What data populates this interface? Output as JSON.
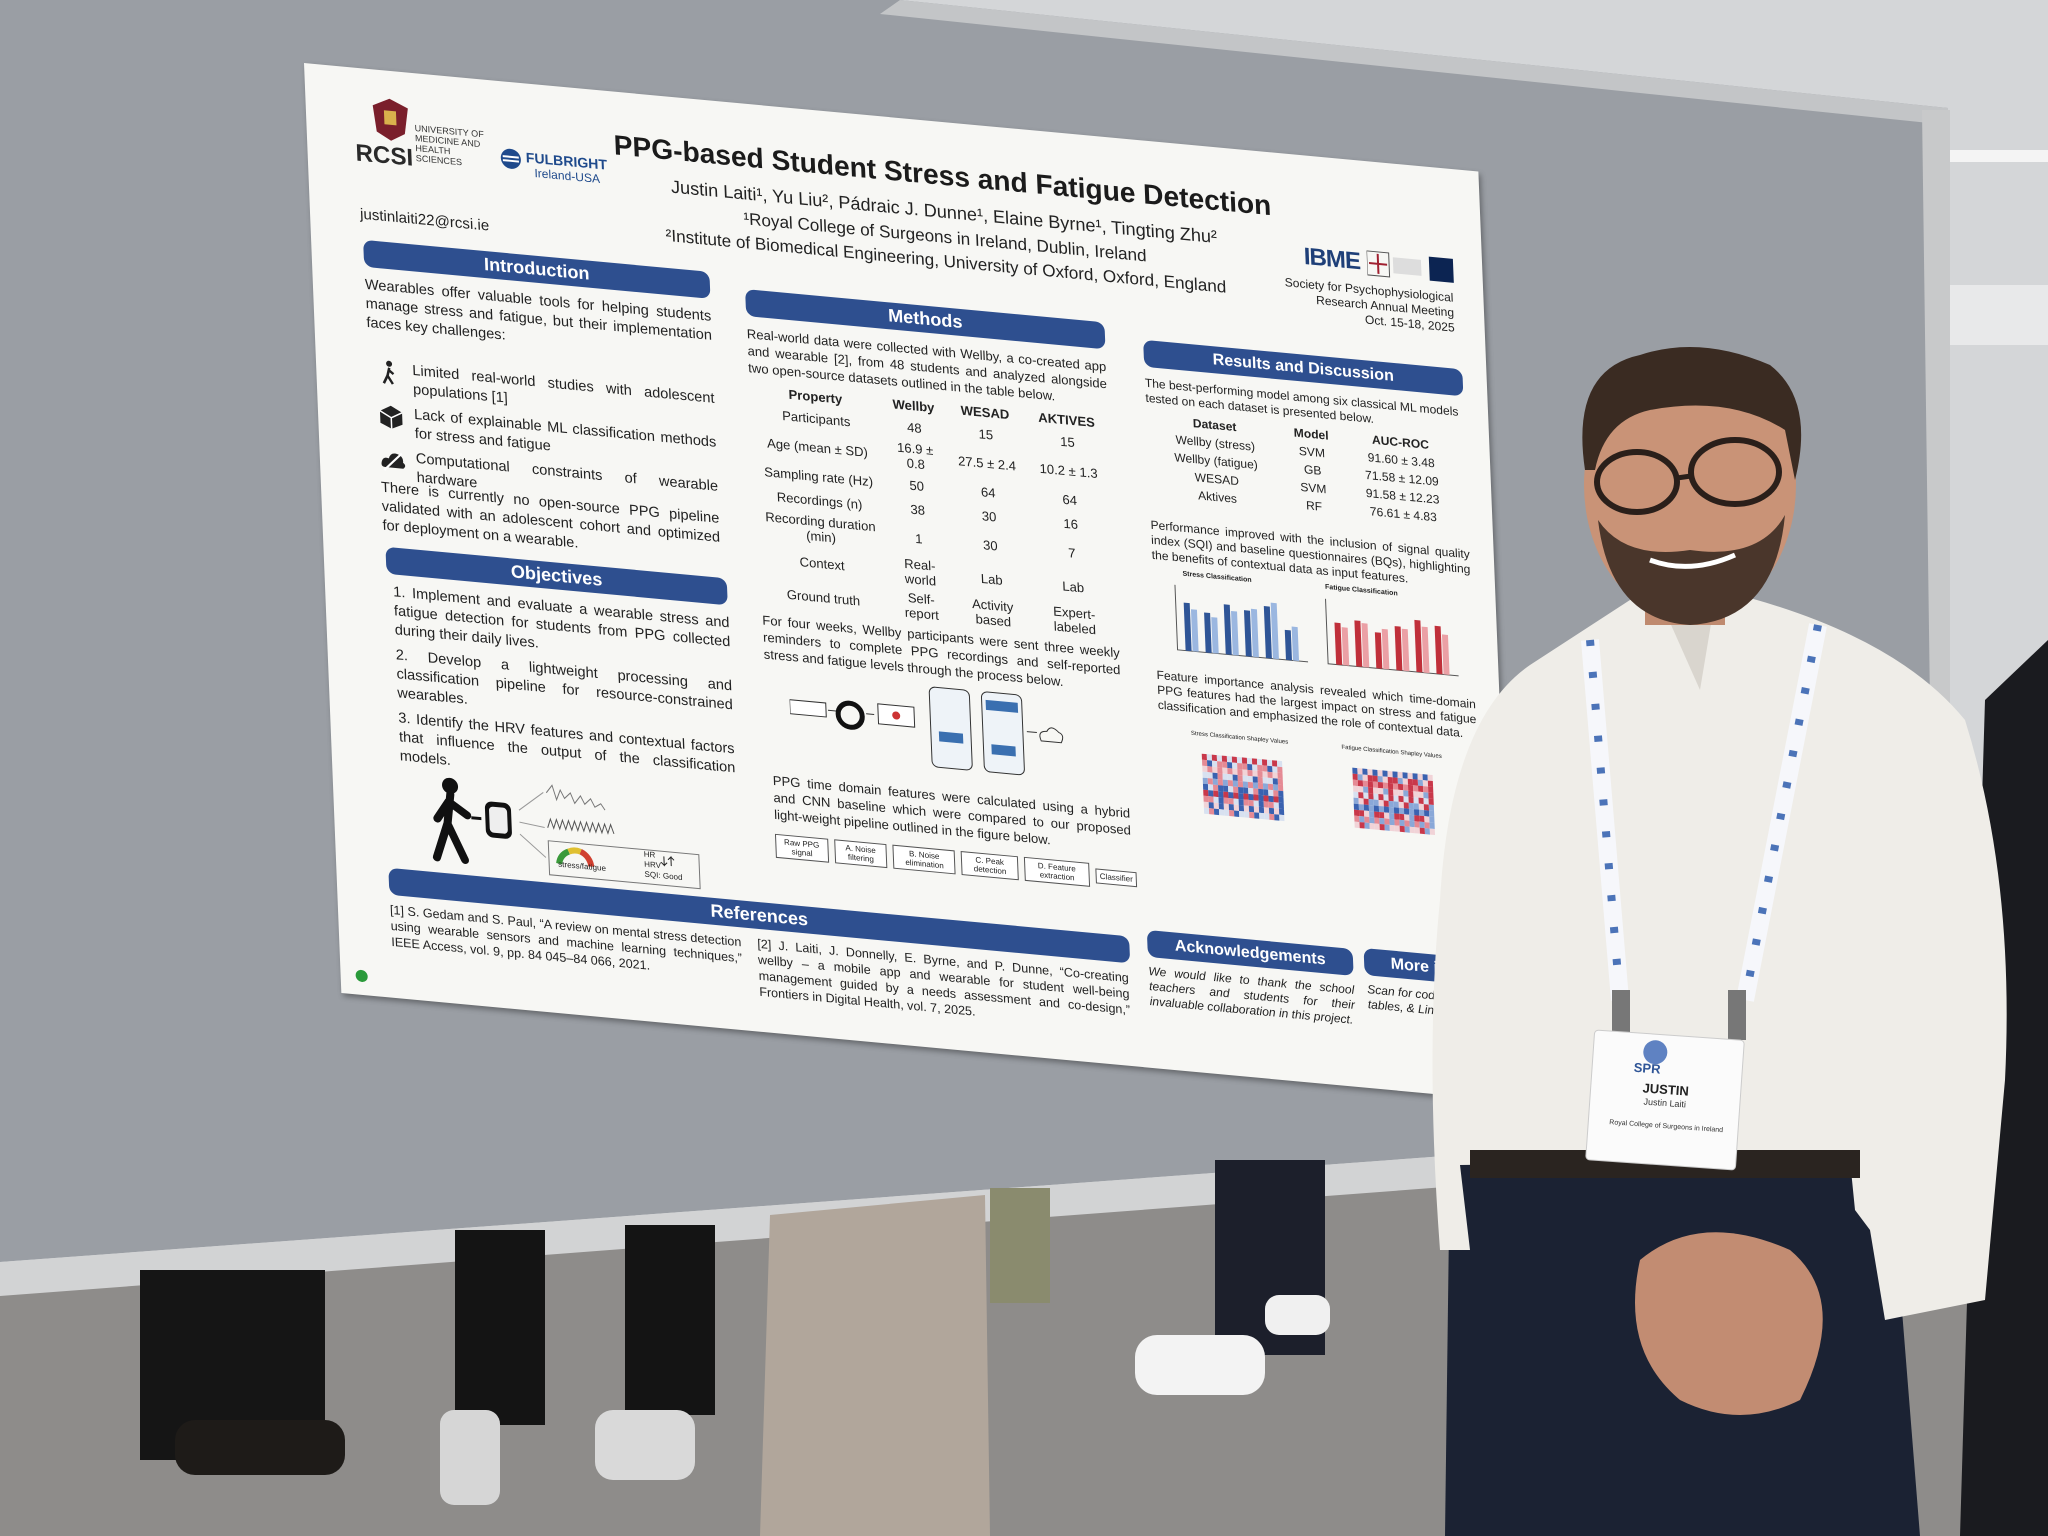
{
  "header": {
    "logo_rcsi": "RCSI",
    "logo_rcsi_text": "UNIVERSITY OF MEDICINE AND HEALTH SCIENCES",
    "logo_fulbright": "FULBRIGHT",
    "logo_fulbright_sub": "Ireland-USA",
    "email": "justinlaiti22@rcsi.ie",
    "title": "PPG-based Student Stress and Fatigue Detection",
    "authors": "Justin Laiti¹, Yu Liu², Pádraic J. Dunne¹, Elaine Byrne¹, Tingting Zhu²",
    "affiliations": [
      "¹Royal College of Surgeons in Ireland, Dublin, Ireland",
      "²Institute of Biomedical Engineering, University of Oxford, Oxford, England"
    ],
    "logo_ibme": "IBME",
    "conference": [
      "Society for Psychophysiological",
      "Research Annual Meeting",
      "Oct. 15-18, 2025"
    ]
  },
  "introduction": {
    "heading": "Introduction",
    "text": "Wearables offer valuable tools for helping students manage stress and fatigue, but their implementation faces key challenges:",
    "items": [
      "Limited real-world studies with adolescent populations [1]",
      "Lack of explainable ML classification methods for stress and fatigue",
      "Computational constraints of wearable hardware"
    ],
    "note": "There is currently no open-source PPG pipeline validated with an adolescent cohort and optimized for deployment on a wearable."
  },
  "objectives": {
    "heading": "Objectives",
    "items": [
      "1. Implement and evaluate a wearable stress and fatigue detection for students from PPG collected during their daily lives.",
      "2. Develop a lightweight processing and classification pipeline for resource-constrained wearables.",
      "3. Identify the HRV features and contextual factors that influence the output of the classification models."
    ],
    "figure_labels": [
      "HR",
      "HRV",
      "SQI: Good",
      "stress/fatigue"
    ]
  },
  "methods": {
    "heading": "Methods",
    "intro": "Real-world data were collected with Wellby, a co-created app and wearable [2], from 48 students and analyzed alongside two open-source datasets outlined in the table below.",
    "table": {
      "header": [
        "Property",
        "Wellby",
        "WESAD",
        "AKTIVES"
      ],
      "rows": [
        [
          "Participants",
          "48",
          "15",
          "15"
        ],
        [
          "Age (mean ± SD)",
          "16.9 ± 0.8",
          "27.5 ± 2.4",
          "10.2 ± 1.3"
        ],
        [
          "Sampling rate (Hz)",
          "50",
          "64",
          "64"
        ],
        [
          "Recordings (n)",
          "38",
          "30",
          "16"
        ],
        [
          "Recording duration (min)",
          "1",
          "30",
          "7"
        ],
        [
          "Context",
          "Real-world",
          "Lab",
          "Lab"
        ],
        [
          "Ground truth",
          "Self-report",
          "Activity based",
          "Expert-labeled"
        ]
      ]
    },
    "process_text": "For four weeks, Wellby participants were sent three weekly reminders to complete PPG recordings and self-reported stress and fatigue levels through the process below.",
    "pipeline_text": "PPG time domain features were calculated using a hybrid and CNN baseline which were compared to our proposed light-weight pipeline outlined in the figure below.",
    "pipeline_steps": [
      "Raw PPG signal",
      "A. Noise filtering",
      "B. Noise elimination",
      "C. Peak detection",
      "D. Feature extraction",
      "Classifier"
    ]
  },
  "results": {
    "heading": "Results and Discussion",
    "intro": "The best-performing model among six classical ML models tested on each dataset is presented below.",
    "table": {
      "header": [
        "Dataset",
        "Model",
        "AUC-ROC"
      ],
      "rows": [
        [
          "Wellby (stress)",
          "SVM",
          "91.60 ± 3.48"
        ],
        [
          "Wellby (fatigue)",
          "GB",
          "71.58 ± 12.09"
        ],
        [
          "WESAD",
          "SVM",
          "91.58 ± 12.23"
        ],
        [
          "Aktives",
          "RF",
          "76.61 ± 4.83"
        ]
      ]
    },
    "performance_text": "Performance improved with the inclusion of signal quality index (SQI) and baseline questionnaires (BQs), highlighting the benefits of contextual data as input features.",
    "chart_titles": [
      "Stress Classification",
      "Fatigue Classification"
    ],
    "feature_text": "Feature importance analysis revealed which time-domain PPG features had the largest impact on stress and fatigue classification and emphasized the role of contextual data.",
    "shap_titles": [
      "Stress Classification Shapley Values",
      "Fatigue Classification Shapley Values"
    ]
  },
  "acknowledgements": {
    "heading": "Acknowledgements",
    "text": "We would like to thank the school teachers and students for their invaluable collaboration in this project."
  },
  "more_info": {
    "heading": "More info",
    "text": "Scan for code, data tables, & LinkedIn."
  },
  "references": {
    "heading": "References",
    "items": [
      "[1] S. Gedam and S. Paul, “A review on mental stress detection using wearable sensors and machine learning techniques,” IEEE Access, vol. 9, pp. 84 045–84 066, 2021.",
      "[2] J. Laiti, J. Donnelly, E. Byrne, and P. Dunne, “Co-creating wellby – a mobile app and wearable for student well-being management guided by a needs assessment and co-design,” Frontiers in Digital Health, vol. 7, 2025."
    ]
  },
  "badge": {
    "logo": "SPR",
    "first_name": "JUSTIN",
    "full_name": "Justin Laiti",
    "organization": "Royal College of Surgeons in Ireland"
  }
}
